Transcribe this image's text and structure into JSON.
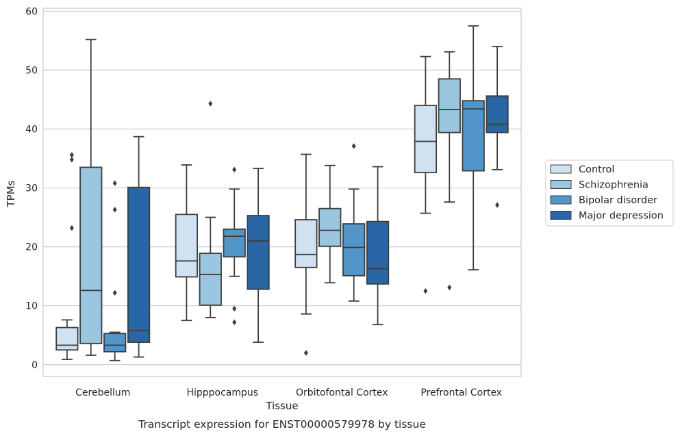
{
  "chart_data": {
    "type": "box",
    "title": "",
    "caption": "Transcript expression for ENST00000579978 by tissue",
    "xlabel": "Tissue",
    "ylabel": "TPMs",
    "ylim": [
      -2,
      60.5
    ],
    "yticks": [
      0,
      10,
      20,
      30,
      40,
      50,
      60
    ],
    "grid": "horizontal",
    "legend_position": "right, outside",
    "categories": [
      "Cerebellum",
      "Hipppocampus",
      "Orbitofontal Cortex",
      "Prefrontal Cortex"
    ],
    "series": [
      {
        "name": "Control",
        "color": "#d0e1f2",
        "boxes": [
          {
            "whisker_low": 0.9,
            "q1": 2.5,
            "median": 3.3,
            "q3": 6.3,
            "whisker_high": 7.6,
            "outliers": []
          },
          {
            "whisker_low": 7.5,
            "q1": 14.9,
            "median": 17.6,
            "q3": 25.5,
            "whisker_high": 33.9,
            "outliers": []
          },
          {
            "whisker_low": 8.6,
            "q1": 16.5,
            "median": 18.7,
            "q3": 24.6,
            "whisker_high": 35.7,
            "outliers": [
              2.0
            ]
          },
          {
            "whisker_low": 25.7,
            "q1": 32.6,
            "median": 37.9,
            "q3": 44.0,
            "whisker_high": 52.3,
            "outliers": [
              12.5
            ]
          }
        ]
      },
      {
        "name": "Schizophrenia",
        "color": "#9ac6e0",
        "boxes": [
          {
            "whisker_low": 1.6,
            "q1": 3.6,
            "median": 12.6,
            "q3": 33.5,
            "whisker_high": 55.2,
            "outliers": []
          },
          {
            "whisker_low": 8.0,
            "q1": 10.1,
            "median": 15.3,
            "q3": 18.9,
            "whisker_high": 25.0,
            "outliers": [
              44.3
            ]
          },
          {
            "whisker_low": 13.9,
            "q1": 20.1,
            "median": 22.8,
            "q3": 26.5,
            "whisker_high": 33.8,
            "outliers": []
          },
          {
            "whisker_low": 27.6,
            "q1": 39.4,
            "median": 43.3,
            "q3": 48.5,
            "whisker_high": 53.1,
            "outliers": [
              13.1
            ]
          }
        ]
      },
      {
        "name": "Bipolar disorder",
        "color": "#5295c8",
        "boxes": [
          {
            "whisker_low": 0.7,
            "q1": 2.2,
            "median": 3.3,
            "q3": 5.3,
            "whisker_high": 5.5,
            "outliers": [
              30.8,
              26.3,
              12.2
            ]
          },
          {
            "whisker_low": 15.0,
            "q1": 18.3,
            "median": 21.8,
            "q3": 23.0,
            "whisker_high": 29.8,
            "outliers": [
              33.1,
              9.5,
              7.2
            ]
          },
          {
            "whisker_low": 10.8,
            "q1": 15.1,
            "median": 19.9,
            "q3": 23.9,
            "whisker_high": 29.8,
            "outliers": [
              37.1
            ]
          },
          {
            "whisker_low": 16.1,
            "q1": 32.9,
            "median": 43.4,
            "q3": 44.8,
            "whisker_high": 57.5,
            "outliers": []
          }
        ]
      },
      {
        "name": "Major depression",
        "color": "#2866a6",
        "boxes": [
          {
            "whisker_low": 1.3,
            "q1": 3.8,
            "median": 5.8,
            "q3": 30.1,
            "whisker_high": 38.7,
            "outliers": []
          },
          {
            "whisker_low": 3.8,
            "q1": 12.8,
            "median": 21.0,
            "q3": 25.3,
            "whisker_high": 33.3,
            "outliers": []
          },
          {
            "whisker_low": 6.8,
            "q1": 13.7,
            "median": 16.3,
            "q3": 24.3,
            "whisker_high": 33.6,
            "outliers": []
          },
          {
            "whisker_low": 33.1,
            "q1": 39.4,
            "median": 40.8,
            "q3": 45.6,
            "whisker_high": 54.0,
            "outliers": [
              27.1
            ]
          }
        ]
      }
    ],
    "extra_outliers": [
      {
        "category": "Cerebellum",
        "series": "Control",
        "values": [
          35.6,
          34.8,
          23.2
        ]
      }
    ]
  }
}
